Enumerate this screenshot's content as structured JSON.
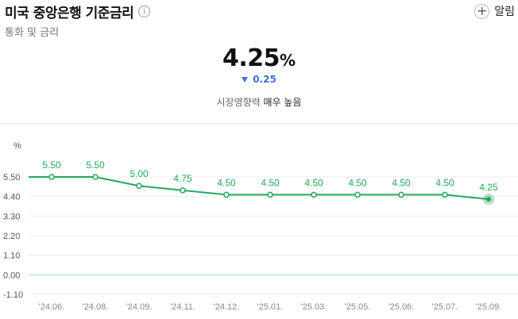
{
  "header": {
    "title": "미국 중앙은행 기준금리",
    "subtitle": "통화 및 금리",
    "info_icon": "i",
    "alarm_label": "알림",
    "alarm_icon": "+"
  },
  "summary": {
    "value": "4.25",
    "unit": "%",
    "change": "0.25",
    "change_direction": "down",
    "impact_label": "시장영향력",
    "impact_level": "매우 높음"
  },
  "colors": {
    "line": "#22a95b",
    "accent_down": "#3a6fd8"
  },
  "chart_data": {
    "type": "line",
    "ylabel": "%",
    "yticks": [
      "5.50",
      "4.40",
      "3.30",
      "2.20",
      "1.10",
      "0.00",
      "-1.10"
    ],
    "ylim": [
      -1.1,
      5.5
    ],
    "categories": [
      "'24.06.",
      "'24.08.",
      "'24.09.",
      "'24.11.",
      "'24.12.",
      "'25.01.",
      "'25.03.",
      "'25.05.",
      "'25.06.",
      "'25.07.",
      "'25.09."
    ],
    "values": [
      5.5,
      5.5,
      5.0,
      4.75,
      4.5,
      4.5,
      4.5,
      4.5,
      4.5,
      4.5,
      4.25
    ],
    "labels": [
      "5.50",
      "5.50",
      "5.00",
      "4.75",
      "4.50",
      "4.50",
      "4.50",
      "4.50",
      "4.50",
      "4.50",
      "4.25"
    ]
  }
}
